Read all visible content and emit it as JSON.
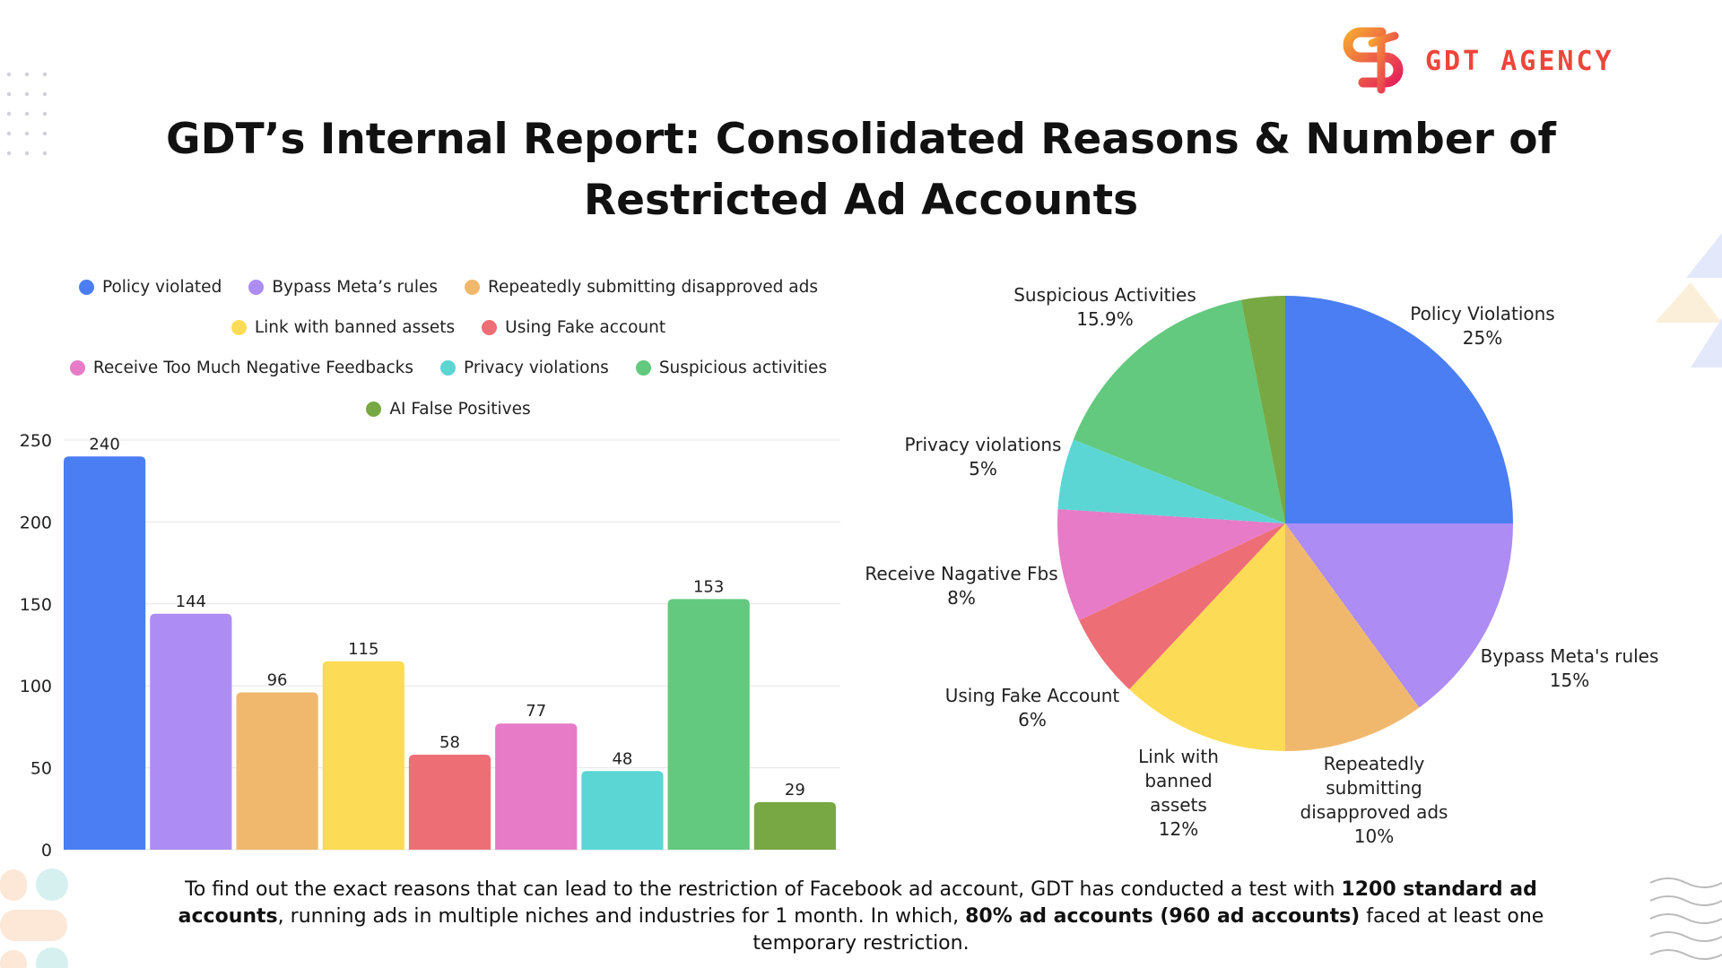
{
  "header": {
    "title_line1": "GDT’s Internal Report: Consolidated Reasons & Number of",
    "title_line2": "Restricted Ad Accounts",
    "logo_text": "GDT AGENCY"
  },
  "chart_data": [
    {
      "type": "bar",
      "categories": [
        "Policy violated",
        "Bypass Meta’s rules",
        "Repeatedly submitting disapproved ads",
        "Link with banned assets",
        "Using Fake account",
        "Receive Too Much Negative Feedbacks",
        "Privacy violations",
        "Suspicious activities",
        "AI False Positives"
      ],
      "values": [
        240,
        144,
        96,
        115,
        58,
        77,
        48,
        153,
        29
      ],
      "colors": [
        "#4a7ef2",
        "#ad8cf3",
        "#f0b86c",
        "#fcdb56",
        "#ee6e75",
        "#e77bc7",
        "#5bd6d4",
        "#62c97e",
        "#77a843"
      ],
      "yticks": [
        0,
        50,
        100,
        150,
        200,
        250
      ],
      "ylim": [
        0,
        250
      ],
      "grid": true,
      "legend": "top",
      "data_labels": true
    },
    {
      "type": "pie",
      "slices": [
        {
          "label": "Policy Violations",
          "pct_label": "25%",
          "value": 25,
          "color": "#4a7ef2"
        },
        {
          "label": "Bypass Meta's rules",
          "pct_label": "15%",
          "value": 15,
          "color": "#ad8cf3"
        },
        {
          "label": "Repeatedly submitting disapproved ads",
          "pct_label": "10%",
          "value": 10,
          "color": "#f0b86c"
        },
        {
          "label": "Link with banned assets",
          "pct_label": "12%",
          "value": 12,
          "color": "#fcdb56"
        },
        {
          "label": "Using Fake Account",
          "pct_label": "6%",
          "value": 6,
          "color": "#ee6e75"
        },
        {
          "label": "Receive Nagative Fbs",
          "pct_label": "8%",
          "value": 8,
          "color": "#e77bc7"
        },
        {
          "label": "Privacy violations",
          "pct_label": "5%",
          "value": 5,
          "color": "#5bd6d4"
        },
        {
          "label": "Suspicious Activities",
          "pct_label": "15.9%",
          "value": 15.9,
          "color": "#62c97e"
        },
        {
          "label": "",
          "pct_label": "",
          "value": 3.1,
          "color": "#77a843"
        }
      ],
      "start": "top",
      "direction": "clockwise"
    }
  ],
  "pie_labels": {
    "policy": [
      "Policy Violations",
      "25%"
    ],
    "bypass": [
      "Bypass Meta's rules",
      "15%"
    ],
    "repeat": [
      "Repeatedly",
      "submitting",
      "disapproved ads",
      "10%"
    ],
    "link": [
      "Link with",
      "banned",
      "assets",
      "12%"
    ],
    "fake": [
      "Using Fake Account",
      "6%"
    ],
    "neg": [
      "Receive Nagative Fbs",
      "8%"
    ],
    "privacy": [
      "Privacy violations",
      "5%"
    ],
    "susp": [
      "Suspicious Activities",
      "15.9%"
    ]
  },
  "footer": {
    "t1": "To find out the exact reasons that can lead to the restriction of Facebook ad account, GDT has conducted a test with ",
    "b1": "1200 standard ad accounts",
    "t2": ", running ads in multiple niches and industries for 1 month.  In which, ",
    "b2": "80% ad accounts (960 ad accounts)",
    "t3": " faced at least one temporary restriction."
  }
}
